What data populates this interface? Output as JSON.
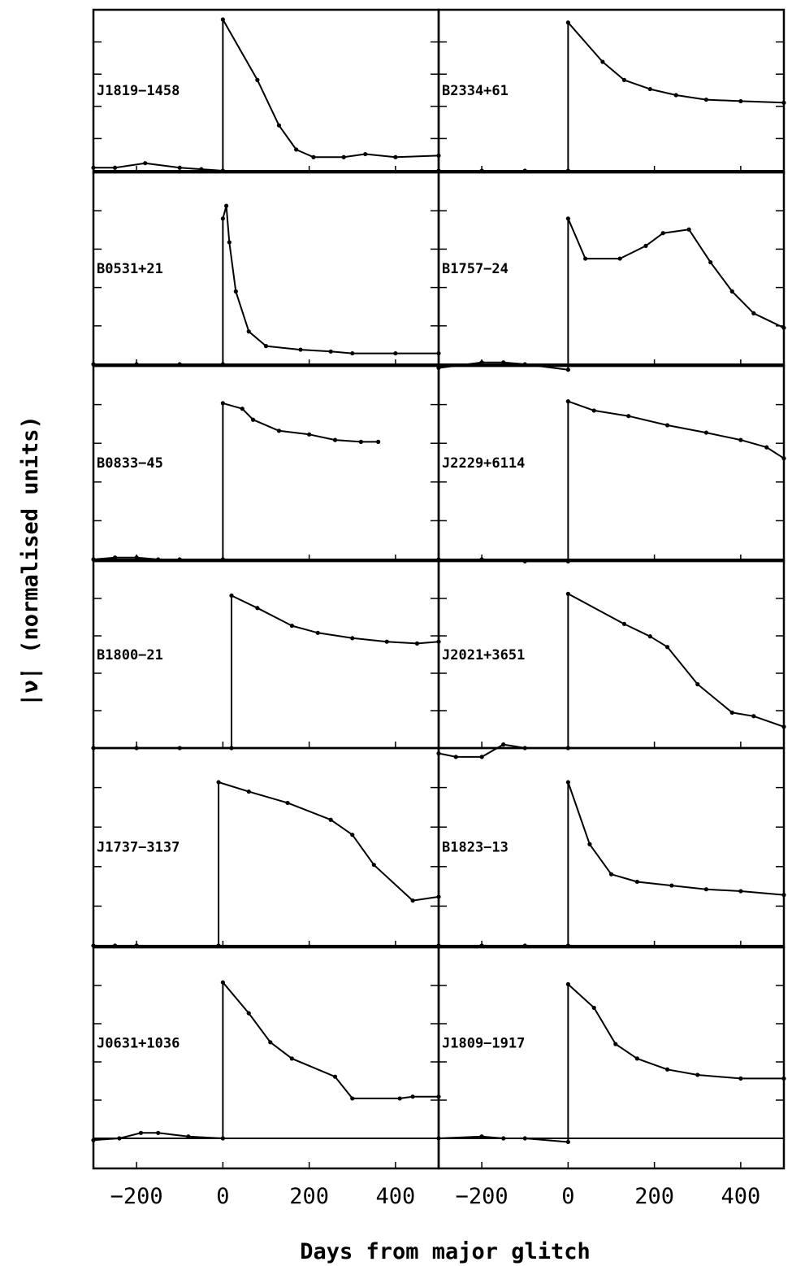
{
  "chart_data": {
    "type": "line",
    "layout": "6 rows x 2 columns, shared axes",
    "xlabel": "Days from major glitch",
    "ylabel": "|ν̇| (normalised units)",
    "xlim": [
      -300,
      500
    ],
    "xticks": [
      -200,
      0,
      200,
      400
    ],
    "xtick_labels": [
      "−200",
      "0",
      "200",
      "400"
    ],
    "ylim": [
      0,
      1
    ],
    "panels": [
      {
        "label": "J1819−1458",
        "glitch_day": 0,
        "pre": [
          [
            -300,
            0.02
          ],
          [
            -250,
            0.02
          ],
          [
            -180,
            0.05
          ],
          [
            -100,
            0.02
          ],
          [
            -50,
            0.01
          ],
          [
            0,
            0.0
          ]
        ],
        "post": [
          [
            0,
            1.0
          ],
          [
            80,
            0.6
          ],
          [
            130,
            0.3
          ],
          [
            170,
            0.14
          ],
          [
            210,
            0.09
          ],
          [
            280,
            0.09
          ],
          [
            330,
            0.11
          ],
          [
            400,
            0.09
          ],
          [
            500,
            0.1
          ]
        ]
      },
      {
        "label": "B2334+61",
        "glitch_day": 0,
        "pre": [
          [
            -300,
            0.0
          ],
          [
            -200,
            0.0
          ],
          [
            -100,
            0.0
          ],
          [
            0,
            0.0
          ]
        ],
        "post": [
          [
            0,
            0.98
          ],
          [
            80,
            0.72
          ],
          [
            130,
            0.6
          ],
          [
            190,
            0.54
          ],
          [
            250,
            0.5
          ],
          [
            320,
            0.47
          ],
          [
            400,
            0.46
          ],
          [
            500,
            0.45
          ]
        ]
      },
      {
        "label": "B0531+21",
        "glitch_day": 0,
        "pre": [
          [
            -300,
            0.0
          ],
          [
            -200,
            0.0
          ],
          [
            -100,
            0.0
          ],
          [
            0,
            0.0
          ]
        ],
        "post": [
          [
            0,
            0.8
          ],
          [
            8,
            0.87
          ],
          [
            15,
            0.67
          ],
          [
            30,
            0.4
          ],
          [
            60,
            0.18
          ],
          [
            100,
            0.1
          ],
          [
            180,
            0.08
          ],
          [
            250,
            0.07
          ],
          [
            300,
            0.06
          ],
          [
            400,
            0.06
          ],
          [
            500,
            0.06
          ]
        ]
      },
      {
        "label": "B1757−24",
        "glitch_day": 0,
        "pre": [
          [
            -300,
            -0.02
          ],
          [
            -200,
            0.01
          ],
          [
            -150,
            0.01
          ],
          [
            -100,
            0.0
          ],
          [
            0,
            -0.03
          ]
        ],
        "post": [
          [
            0,
            0.8
          ],
          [
            40,
            0.58
          ],
          [
            120,
            0.58
          ],
          [
            180,
            0.65
          ],
          [
            220,
            0.72
          ],
          [
            280,
            0.74
          ],
          [
            330,
            0.56
          ],
          [
            380,
            0.4
          ],
          [
            430,
            0.28
          ],
          [
            500,
            0.2
          ]
        ]
      },
      {
        "label": "B0833−45",
        "glitch_day": 0,
        "pre": [
          [
            -300,
            0.0
          ],
          [
            -250,
            0.01
          ],
          [
            -200,
            0.01
          ],
          [
            -150,
            0.0
          ],
          [
            -100,
            0.0
          ],
          [
            0,
            0.0
          ]
        ],
        "post": [
          [
            0,
            0.85
          ],
          [
            45,
            0.82
          ],
          [
            70,
            0.76
          ],
          [
            130,
            0.7
          ],
          [
            200,
            0.68
          ],
          [
            260,
            0.65
          ],
          [
            320,
            0.64
          ],
          [
            360,
            0.64
          ]
        ]
      },
      {
        "label": "J2229+6114",
        "glitch_day": 0,
        "pre": [
          [
            -300,
            0.0
          ],
          [
            -200,
            0.0
          ],
          [
            -100,
            -0.01
          ],
          [
            0,
            -0.01
          ]
        ],
        "post": [
          [
            0,
            0.86
          ],
          [
            60,
            0.81
          ],
          [
            140,
            0.78
          ],
          [
            230,
            0.73
          ],
          [
            320,
            0.69
          ],
          [
            400,
            0.65
          ],
          [
            460,
            0.61
          ],
          [
            500,
            0.55
          ]
        ]
      },
      {
        "label": "B1800−21",
        "glitch_day": 20,
        "pre": [
          [
            -300,
            0.0
          ],
          [
            -200,
            0.0
          ],
          [
            -100,
            0.0
          ],
          [
            20,
            0.0
          ]
        ],
        "post": [
          [
            20,
            0.86
          ],
          [
            80,
            0.79
          ],
          [
            160,
            0.69
          ],
          [
            220,
            0.65
          ],
          [
            300,
            0.62
          ],
          [
            380,
            0.6
          ],
          [
            450,
            0.59
          ],
          [
            500,
            0.6
          ]
        ]
      },
      {
        "label": "J2021+3651",
        "glitch_day": 0,
        "pre": [
          [
            -300,
            -0.03
          ],
          [
            -260,
            -0.05
          ],
          [
            -200,
            -0.05
          ],
          [
            -150,
            0.02
          ],
          [
            -100,
            0.0
          ],
          [
            0,
            0.0
          ]
        ],
        "post": [
          [
            0,
            0.87
          ],
          [
            130,
            0.7
          ],
          [
            190,
            0.63
          ],
          [
            230,
            0.57
          ],
          [
            300,
            0.36
          ],
          [
            380,
            0.2
          ],
          [
            430,
            0.18
          ],
          [
            500,
            0.12
          ]
        ]
      },
      {
        "label": "J1737−3137",
        "glitch_day": -10,
        "pre": [
          [
            -300,
            0.0
          ],
          [
            -250,
            0.0
          ],
          [
            -200,
            0.0
          ],
          [
            -10,
            0.0
          ]
        ],
        "post": [
          [
            -10,
            0.87
          ],
          [
            60,
            0.82
          ],
          [
            150,
            0.76
          ],
          [
            250,
            0.67
          ],
          [
            300,
            0.59
          ],
          [
            350,
            0.43
          ],
          [
            440,
            0.24
          ],
          [
            500,
            0.26
          ]
        ]
      },
      {
        "label": "B1823−13",
        "glitch_day": 0,
        "pre": [
          [
            -300,
            0.0
          ],
          [
            -200,
            0.0
          ],
          [
            -100,
            0.0
          ],
          [
            0,
            0.0
          ]
        ],
        "post": [
          [
            0,
            0.87
          ],
          [
            50,
            0.54
          ],
          [
            100,
            0.38
          ],
          [
            160,
            0.34
          ],
          [
            240,
            0.32
          ],
          [
            320,
            0.3
          ],
          [
            400,
            0.29
          ],
          [
            500,
            0.27
          ]
        ]
      },
      {
        "label": "J0631+1036",
        "glitch_day": 0,
        "pre": [
          [
            -300,
            -0.01
          ],
          [
            -240,
            0.0
          ],
          [
            -190,
            0.03
          ],
          [
            -150,
            0.03
          ],
          [
            -80,
            0.01
          ],
          [
            0,
            0.0
          ]
        ],
        "post": [
          [
            0,
            0.86
          ],
          [
            60,
            0.69
          ],
          [
            110,
            0.53
          ],
          [
            160,
            0.44
          ],
          [
            260,
            0.34
          ],
          [
            300,
            0.22
          ],
          [
            410,
            0.22
          ],
          [
            440,
            0.23
          ],
          [
            500,
            0.23
          ]
        ]
      },
      {
        "label": "J1809−1917",
        "glitch_day": 0,
        "pre": [
          [
            -300,
            0.0
          ],
          [
            -200,
            0.01
          ],
          [
            -150,
            0.0
          ],
          [
            -100,
            0.0
          ],
          [
            0,
            -0.02
          ]
        ],
        "post": [
          [
            0,
            0.85
          ],
          [
            60,
            0.72
          ],
          [
            110,
            0.52
          ],
          [
            160,
            0.44
          ],
          [
            230,
            0.38
          ],
          [
            300,
            0.35
          ],
          [
            400,
            0.33
          ],
          [
            500,
            0.33
          ]
        ]
      }
    ]
  }
}
